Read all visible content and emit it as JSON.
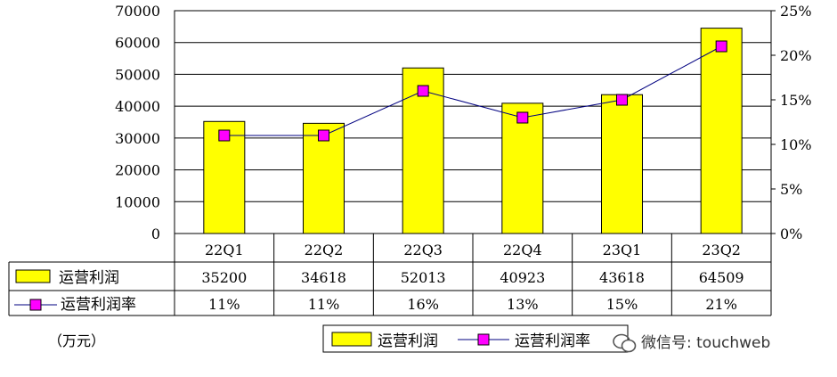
{
  "chart_data": {
    "type": "bar",
    "categories": [
      "22Q1",
      "22Q2",
      "22Q3",
      "22Q4",
      "23Q1",
      "23Q2"
    ],
    "series": [
      {
        "name": "运营利润",
        "kind": "bar",
        "axis": "left",
        "values": [
          35200,
          34618,
          52013,
          40923,
          43618,
          64509
        ],
        "color": "#FFFF00",
        "table_labels": [
          "35200",
          "34618",
          "52013",
          "40923",
          "43618",
          "64509"
        ]
      },
      {
        "name": "运营利润率",
        "kind": "line",
        "axis": "right",
        "values": [
          0.11,
          0.11,
          0.16,
          0.13,
          0.15,
          0.21
        ],
        "color": "#FF00FF",
        "table_labels": [
          "11%",
          "11%",
          "16%",
          "13%",
          "15%",
          "21%"
        ]
      }
    ],
    "y_left": {
      "min": 0,
      "max": 70000,
      "ticks": [
        0,
        10000,
        20000,
        30000,
        40000,
        50000,
        60000,
        70000
      ],
      "tick_labels": [
        "0",
        "10000",
        "20000",
        "30000",
        "40000",
        "50000",
        "60000",
        "70000"
      ]
    },
    "y_right": {
      "min": 0,
      "max": 0.25,
      "ticks": [
        0,
        0.05,
        0.1,
        0.15,
        0.2,
        0.25
      ],
      "tick_labels": [
        "0%",
        "5%",
        "10%",
        "15%",
        "20%",
        "25%"
      ]
    },
    "grid": "horizontal",
    "legend": {
      "position": "bottom",
      "entries": [
        "运营利润",
        "运营利润率"
      ]
    },
    "data_table": true
  },
  "unit_label": "（万元）",
  "watermark": "微信号: touchweb"
}
